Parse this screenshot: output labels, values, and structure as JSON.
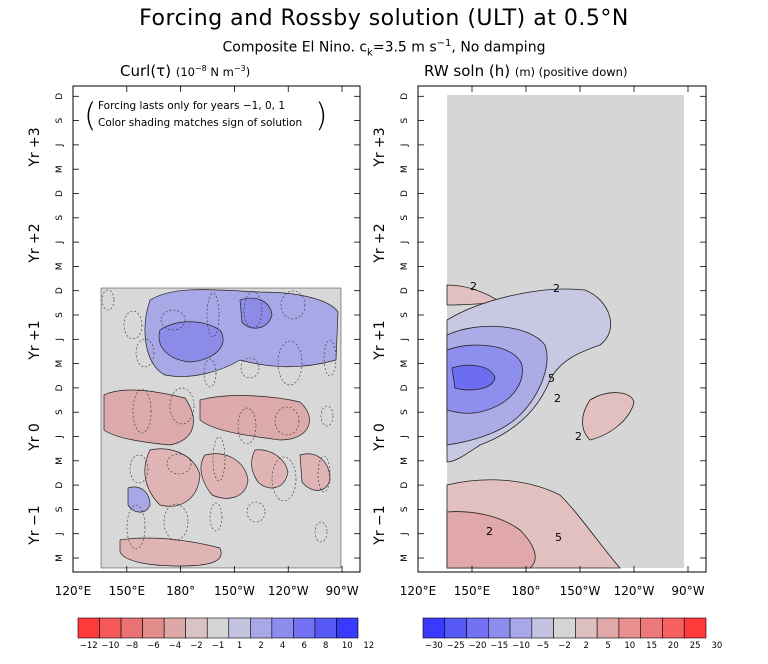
{
  "title": "Forcing and Rossby solution (ULT) at 0.5°N",
  "subtitle": {
    "main": "Composite El Nino. c",
    "sub": "k",
    "rest": "=3.5 m s",
    "sup": "−1",
    "tail": ", No damping"
  },
  "left_panel": {
    "title": "Curl(τ)",
    "units": {
      "main": "(10",
      "sup1": "−8",
      "mid": " N m",
      "sup2": "−3",
      "end": ")"
    },
    "note": [
      "Forcing lasts only for years −1, 0, 1",
      "Color shading matches sign of solution"
    ]
  },
  "right_panel": {
    "title": "RW soln (h)",
    "units": "(m) (positive down)"
  },
  "chart_data": [
    {
      "type": "heatmap",
      "title": "Curl(τ) (10^-8 N m^-3)",
      "xlabel": "",
      "ylabel": "",
      "x_ticks": [
        "120°E",
        "150°E",
        "180°",
        "150°W",
        "120°W",
        "90°W"
      ],
      "y_month_ticks": [
        "M",
        "J",
        "S",
        "D",
        "M",
        "J",
        "S",
        "D",
        "M",
        "J",
        "S",
        "D",
        "M",
        "J",
        "S",
        "D",
        "M",
        "J",
        "S",
        "D"
      ],
      "y_year_labels": [
        "Yr −1",
        "Yr 0",
        "Yr +1",
        "Yr +2",
        "Yr +3"
      ],
      "colorbar": {
        "labels": [
          "−12",
          "−10",
          "−8",
          "−6",
          "−4",
          "−2",
          "−1",
          "1",
          "2",
          "4",
          "6",
          "8",
          "10",
          "12"
        ],
        "colors": [
          "#ff3a3a",
          "#f55858",
          "#eb7272",
          "#e28c8c",
          "#dca8a8",
          "#d8c4c4",
          "#d6d6d6",
          "#c4c4e0",
          "#a8a8e8",
          "#8c8cee",
          "#7272f2",
          "#5858f6",
          "#3a3aff"
        ]
      },
      "features": [
        {
          "label": "positive curl (blue)",
          "region": "160°E–130°W, Yr+1 Apr–Sep",
          "approx_max": 6
        },
        {
          "label": "negative curl (red)",
          "region": "130°E–130°W, Yr 0 Mar–Sep",
          "approx_min": -4
        },
        {
          "label": "small positive patch",
          "region": "150°E, Yr −1 Oct",
          "approx_max": 2
        }
      ]
    },
    {
      "type": "heatmap",
      "title": "RW soln (h) (m) (positive down)",
      "xlabel": "",
      "ylabel": "",
      "x_ticks": [
        "120°E",
        "150°E",
        "180°",
        "150°W",
        "120°W",
        "90°W"
      ],
      "y_month_ticks": [
        "M",
        "J",
        "S",
        "D",
        "M",
        "J",
        "S",
        "D",
        "M",
        "J",
        "S",
        "D",
        "M",
        "J",
        "S",
        "D",
        "M",
        "J",
        "S",
        "D"
      ],
      "y_year_labels": [
        "Yr −1",
        "Yr 0",
        "Yr +1",
        "Yr +2",
        "Yr +3"
      ],
      "contour_labels": [
        "2",
        "2",
        "5",
        "2",
        "2",
        "5",
        "2"
      ],
      "colorbar": {
        "labels": [
          "−30",
          "−25",
          "−20",
          "−15",
          "−10",
          "−5",
          "−2",
          "2",
          "5",
          "10",
          "15",
          "20",
          "25",
          "30"
        ],
        "colors": [
          "#3a3aff",
          "#5858f6",
          "#7272f2",
          "#8c8cee",
          "#a8a8e8",
          "#c4c4e0",
          "#d6d6d6",
          "#dcc0c0",
          "#e0a8a8",
          "#e89090",
          "#ee7878",
          "#f56060",
          "#ff3a3a"
        ]
      },
      "features": [
        {
          "label": "negative h minimum",
          "region": "150°E, Yr 0 Dec",
          "approx_min": -20
        },
        {
          "label": "positive h",
          "region": "130°E–150°W, Yr −1 Mar–Aug",
          "approx_max": 8
        },
        {
          "label": "positive patch",
          "region": "120°W, Yr 0 Sep",
          "approx_max": 3
        }
      ]
    }
  ]
}
